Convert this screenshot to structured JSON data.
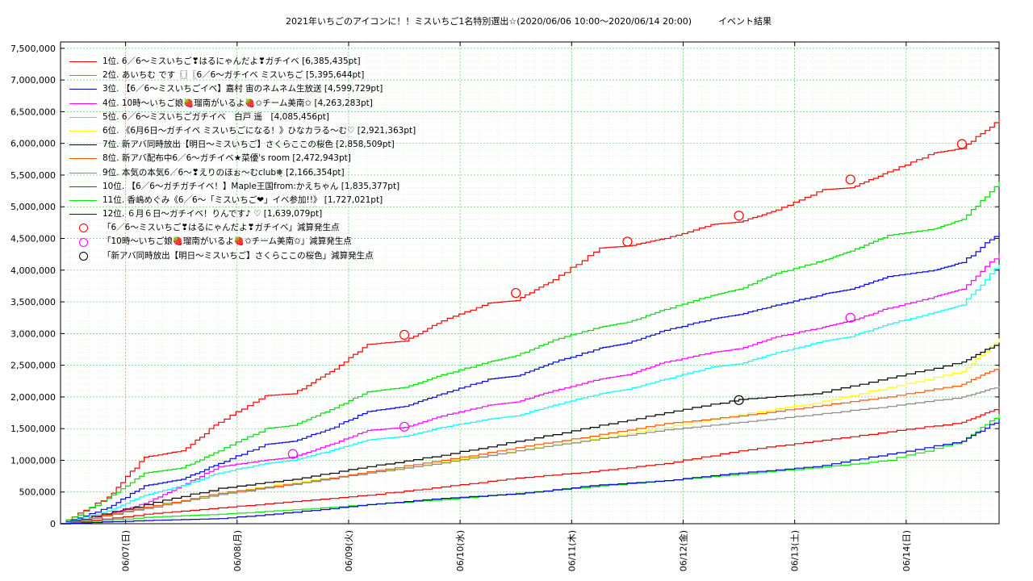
{
  "chart_data": {
    "type": "line",
    "title": "2021年いちごのアイコンに！！ミスいちご1名特別選出☆(2020/06/06 10:00〜2020/06/14 20:00)　　　イベント結果",
    "xlabel": "",
    "ylabel": "",
    "x_start": "2020/06/06 10:00",
    "x_end": "2020/06/14 20:00",
    "x_ticks": [
      "06/07(日)",
      "06/08(月)",
      "06/09(火)",
      "06/10(水)",
      "06/11(木)",
      "06/12(金)",
      "06/13(土)",
      "06/14(日)"
    ],
    "x_tick_dates": [
      "2020/06/07 00:00",
      "2020/06/08 00:00",
      "2020/06/09 00:00",
      "2020/06/10 00:00",
      "2020/06/11 00:00",
      "2020/06/12 00:00",
      "2020/06/13 00:00",
      "2020/06/14 00:00"
    ],
    "y_ticks": [
      "0",
      "500,000",
      "1,000,000",
      "1,500,000",
      "2,000,000",
      "2,500,000",
      "3,000,000",
      "3,500,000",
      "4,000,000",
      "4,500,000",
      "5,000,000",
      "5,500,000",
      "6,000,000",
      "6,500,000",
      "7,000,000",
      "7,500,000"
    ],
    "ylim": [
      0,
      7600000
    ],
    "grid": true,
    "legend_position": "top-left",
    "series": [
      {
        "name": "1位. 6／6〜ミスいちご❣はるにゃんだよ❣ガチイベ [6,385,435pt]",
        "color": "#ff0000",
        "x": [
          "2020/06/06 10:00",
          "2020/06/06 20:00",
          "2020/06/07 04:00",
          "2020/06/07 12:00",
          "2020/06/07 20:00",
          "2020/06/08 06:00",
          "2020/06/08 12:00",
          "2020/06/08 20:00",
          "2020/06/09 04:00",
          "2020/06/09 12:00",
          "2020/06/09 20:00",
          "2020/06/10 06:00",
          "2020/06/10 12:00",
          "2020/06/10 20:00",
          "2020/06/11 06:00",
          "2020/06/11 12:00",
          "2020/06/11 20:00",
          "2020/06/12 06:00",
          "2020/06/12 12:00",
          "2020/06/12 20:00",
          "2020/06/13 06:00",
          "2020/06/13 12:00",
          "2020/06/13 20:00",
          "2020/06/14 06:00",
          "2020/06/14 12:00",
          "2020/06/14 20:00"
        ],
        "y": [
          0,
          420000,
          1050000,
          1150000,
          1600000,
          2020000,
          2050000,
          2400000,
          2830000,
          2880000,
          3200000,
          3480000,
          3520000,
          3850000,
          4350000,
          4380000,
          4500000,
          4720000,
          4760000,
          4950000,
          5270000,
          5300000,
          5550000,
          5850000,
          5920000,
          6385435
        ]
      },
      {
        "name": "2位. あいちむ です〖〗〖6／6〜ガチイベ ミスいちご [5,395,644pt]",
        "color": "#00dd00",
        "x": [
          "2020/06/06 10:00",
          "2020/06/06 20:00",
          "2020/06/07 04:00",
          "2020/06/07 12:00",
          "2020/06/07 20:00",
          "2020/06/08 06:00",
          "2020/06/08 12:00",
          "2020/06/08 20:00",
          "2020/06/09 04:00",
          "2020/06/09 12:00",
          "2020/06/09 20:00",
          "2020/06/10 06:00",
          "2020/06/10 12:00",
          "2020/06/10 20:00",
          "2020/06/11 06:00",
          "2020/06/11 12:00",
          "2020/06/11 20:00",
          "2020/06/12 06:00",
          "2020/06/12 12:00",
          "2020/06/12 20:00",
          "2020/06/13 06:00",
          "2020/06/13 12:00",
          "2020/06/13 20:00",
          "2020/06/14 06:00",
          "2020/06/14 12:00",
          "2020/06/14 20:00"
        ],
        "y": [
          0,
          400000,
          800000,
          880000,
          1150000,
          1500000,
          1550000,
          1800000,
          2080000,
          2150000,
          2350000,
          2550000,
          2650000,
          2900000,
          3100000,
          3180000,
          3380000,
          3600000,
          3700000,
          3950000,
          4150000,
          4300000,
          4550000,
          4650000,
          4800000,
          5395644
        ]
      },
      {
        "name": "3位. 【6／6〜ミスいちごイベ】嘉村 宙のネムネム生放送 [4,599,729pt]",
        "color": "#0000ee",
        "x": [
          "2020/06/06 10:00",
          "2020/06/06 20:00",
          "2020/06/07 04:00",
          "2020/06/07 12:00",
          "2020/06/07 20:00",
          "2020/06/08 06:00",
          "2020/06/08 12:00",
          "2020/06/08 20:00",
          "2020/06/09 04:00",
          "2020/06/09 12:00",
          "2020/06/09 20:00",
          "2020/06/10 06:00",
          "2020/06/10 12:00",
          "2020/06/10 20:00",
          "2020/06/11 06:00",
          "2020/06/11 12:00",
          "2020/06/11 20:00",
          "2020/06/12 06:00",
          "2020/06/12 12:00",
          "2020/06/12 20:00",
          "2020/06/13 06:00",
          "2020/06/13 12:00",
          "2020/06/13 20:00",
          "2020/06/14 06:00",
          "2020/06/14 12:00",
          "2020/06/14 20:00"
        ],
        "y": [
          0,
          250000,
          600000,
          700000,
          950000,
          1250000,
          1300000,
          1500000,
          1770000,
          1850000,
          2050000,
          2280000,
          2330000,
          2550000,
          2770000,
          2850000,
          3050000,
          3230000,
          3300000,
          3450000,
          3620000,
          3700000,
          3900000,
          4000000,
          4120000,
          4599729
        ]
      },
      {
        "name": "4位. 10時〜いちご娘🍓瑠南がいるよ🍓✩チーム美南✩ [4,263,283pt]",
        "color": "#ff00ff",
        "x": [
          "2020/06/06 10:00",
          "2020/06/06 20:00",
          "2020/06/07 04:00",
          "2020/06/07 12:00",
          "2020/06/07 20:00",
          "2020/06/08 06:00",
          "2020/06/08 12:00",
          "2020/06/08 20:00",
          "2020/06/09 04:00",
          "2020/06/09 12:00",
          "2020/06/09 20:00",
          "2020/06/10 06:00",
          "2020/06/10 12:00",
          "2020/06/10 20:00",
          "2020/06/11 06:00",
          "2020/06/11 12:00",
          "2020/06/11 20:00",
          "2020/06/12 06:00",
          "2020/06/12 12:00",
          "2020/06/12 20:00",
          "2020/06/13 06:00",
          "2020/06/13 12:00",
          "2020/06/13 20:00",
          "2020/06/14 06:00",
          "2020/06/14 12:00",
          "2020/06/14 20:00"
        ],
        "y": [
          0,
          150000,
          320000,
          600000,
          900000,
          1000000,
          1050000,
          1250000,
          1470000,
          1520000,
          1700000,
          1870000,
          1920000,
          2100000,
          2280000,
          2350000,
          2550000,
          2700000,
          2760000,
          2950000,
          3100000,
          3200000,
          3400000,
          3580000,
          3700000,
          4263283
        ]
      },
      {
        "name": "5位. 6／6〜ミスいちごガチイベ　白戸 遥　[4,085,456pt]",
        "color": "#00ffff",
        "x": [
          "2020/06/06 10:00",
          "2020/06/06 20:00",
          "2020/06/07 04:00",
          "2020/06/07 12:00",
          "2020/06/07 20:00",
          "2020/06/08 06:00",
          "2020/06/08 12:00",
          "2020/06/08 20:00",
          "2020/06/09 04:00",
          "2020/06/09 12:00",
          "2020/06/09 20:00",
          "2020/06/10 06:00",
          "2020/06/10 12:00",
          "2020/06/10 20:00",
          "2020/06/11 06:00",
          "2020/06/11 12:00",
          "2020/06/11 20:00",
          "2020/06/12 06:00",
          "2020/06/12 12:00",
          "2020/06/12 20:00",
          "2020/06/13 06:00",
          "2020/06/13 12:00",
          "2020/06/13 20:00",
          "2020/06/14 06:00",
          "2020/06/14 12:00",
          "2020/06/14 20:00"
        ],
        "y": [
          0,
          200000,
          450000,
          600000,
          800000,
          950000,
          1000000,
          1150000,
          1320000,
          1380000,
          1520000,
          1650000,
          1700000,
          1870000,
          2050000,
          2120000,
          2280000,
          2470000,
          2520000,
          2700000,
          2880000,
          2950000,
          3150000,
          3330000,
          3450000,
          4085456
        ]
      },
      {
        "name": "6位. 《6月6日〜ガチイベ ミスいちごになる！》ひなカラる〜む♡ [2,921,363pt]",
        "color": "#ffff00",
        "x": [
          "2020/06/06 10:00",
          "2020/06/07 04:00",
          "2020/06/07 20:00",
          "2020/06/08 12:00",
          "2020/06/09 04:00",
          "2020/06/09 20:00",
          "2020/06/10 12:00",
          "2020/06/11 04:00",
          "2020/06/11 20:00",
          "2020/06/12 12:00",
          "2020/06/13 04:00",
          "2020/06/13 20:00",
          "2020/06/14 12:00",
          "2020/06/14 20:00"
        ],
        "y": [
          0,
          250000,
          480000,
          650000,
          800000,
          980000,
          1150000,
          1330000,
          1520000,
          1720000,
          1900000,
          2150000,
          2400000,
          2921363
        ]
      },
      {
        "name": "7位. 新アバ同時放出【明日〜ミスいちご】さくらここの桜色 [2,858,509pt]",
        "color": "#000000",
        "x": [
          "2020/06/06 10:00",
          "2020/06/07 04:00",
          "2020/06/07 20:00",
          "2020/06/08 12:00",
          "2020/06/09 04:00",
          "2020/06/09 20:00",
          "2020/06/10 12:00",
          "2020/06/11 04:00",
          "2020/06/11 20:00",
          "2020/06/12 12:00",
          "2020/06/13 04:00",
          "2020/06/13 20:00",
          "2020/06/14 12:00",
          "2020/06/14 20:00"
        ],
        "y": [
          0,
          300000,
          560000,
          700000,
          900000,
          1080000,
          1300000,
          1520000,
          1750000,
          1960000,
          2050000,
          2300000,
          2550000,
          2858509
        ]
      },
      {
        "name": "8位. 新アバ配布中6／6〜ガチイベ★菜優's room [2,472,943pt]",
        "color": "#ff5500",
        "x": [
          "2020/06/06 10:00",
          "2020/06/07 04:00",
          "2020/06/07 20:00",
          "2020/06/08 12:00",
          "2020/06/09 04:00",
          "2020/06/09 20:00",
          "2020/06/10 12:00",
          "2020/06/11 04:00",
          "2020/06/11 20:00",
          "2020/06/12 12:00",
          "2020/06/13 04:00",
          "2020/06/13 20:00",
          "2020/06/14 12:00",
          "2020/06/14 20:00"
        ],
        "y": [
          0,
          260000,
          480000,
          630000,
          820000,
          1000000,
          1200000,
          1380000,
          1580000,
          1700000,
          1850000,
          2000000,
          2200000,
          2472943
        ]
      },
      {
        "name": "9位. 本気の本気6／6〜❣えりのほぉ〜むclub❅̣ [2,166,354pt]",
        "color": "#888888",
        "x": [
          "2020/06/06 10:00",
          "2020/06/07 04:00",
          "2020/06/07 20:00",
          "2020/06/08 12:00",
          "2020/06/09 04:00",
          "2020/06/09 20:00",
          "2020/06/10 12:00",
          "2020/06/11 04:00",
          "2020/06/11 20:00",
          "2020/06/12 12:00",
          "2020/06/13 04:00",
          "2020/06/13 20:00",
          "2020/06/14 12:00",
          "2020/06/14 20:00"
        ],
        "y": [
          0,
          240000,
          460000,
          620000,
          800000,
          960000,
          1150000,
          1320000,
          1480000,
          1600000,
          1720000,
          1850000,
          2000000,
          2166354
        ]
      },
      {
        "name": "10位. 【6／6〜ガチガチイベ！】Maple王国from:かえちゃん [1,835,377pt]",
        "color": "#ee0000",
        "x": [
          "2020/06/06 10:00",
          "2020/06/07 04:00",
          "2020/06/07 20:00",
          "2020/06/08 12:00",
          "2020/06/09 04:00",
          "2020/06/09 20:00",
          "2020/06/10 12:00",
          "2020/06/11 04:00",
          "2020/06/11 20:00",
          "2020/06/12 12:00",
          "2020/06/13 04:00",
          "2020/06/13 20:00",
          "2020/06/14 12:00",
          "2020/06/14 20:00"
        ],
        "y": [
          0,
          150000,
          250000,
          350000,
          450000,
          580000,
          720000,
          820000,
          950000,
          1150000,
          1300000,
          1450000,
          1600000,
          1835377
        ]
      },
      {
        "name": "11位. 香嶋めぐみ《6／6〜「ミスいちご❤」イベ参加!!》 [1,727,021pt]",
        "color": "#00ee00",
        "x": [
          "2020/06/06 10:00",
          "2020/06/07 04:00",
          "2020/06/07 20:00",
          "2020/06/08 12:00",
          "2020/06/09 04:00",
          "2020/06/09 20:00",
          "2020/06/10 12:00",
          "2020/06/11 04:00",
          "2020/06/11 20:00",
          "2020/06/12 12:00",
          "2020/06/13 04:00",
          "2020/06/13 20:00",
          "2020/06/14 12:00",
          "2020/06/14 20:00"
        ],
        "y": [
          0,
          100000,
          150000,
          220000,
          300000,
          380000,
          480000,
          580000,
          680000,
          780000,
          880000,
          1000000,
          1300000,
          1727021
        ]
      },
      {
        "name": "12位. ６月６日〜ガチイベ！りんです♪ ♡ [1,639,079pt]",
        "color": "#0000cc",
        "x": [
          "2020/06/06 10:00",
          "2020/06/07 04:00",
          "2020/06/07 20:00",
          "2020/06/08 12:00",
          "2020/06/09 04:00",
          "2020/06/09 20:00",
          "2020/06/10 12:00",
          "2020/06/11 04:00",
          "2020/06/11 20:00",
          "2020/06/12 12:00",
          "2020/06/13 04:00",
          "2020/06/13 20:00",
          "2020/06/14 12:00",
          "2020/06/14 20:00"
        ],
        "y": [
          0,
          50000,
          80000,
          180000,
          300000,
          400000,
          470000,
          600000,
          680000,
          800000,
          900000,
          1100000,
          1300000,
          1639079
        ]
      }
    ],
    "markers": [
      {
        "name": "「6／6〜ミスいちご❣はるにゃんだよ❣ガチイベ」減算発生点",
        "color": "#ff0000",
        "points": [
          {
            "x": "2020/06/09 12:00",
            "y": 2980000
          },
          {
            "x": "2020/06/10 12:00",
            "y": 3640000
          },
          {
            "x": "2020/06/11 12:00",
            "y": 4450000
          },
          {
            "x": "2020/06/12 12:00",
            "y": 4860000
          },
          {
            "x": "2020/06/13 12:00",
            "y": 5430000
          },
          {
            "x": "2020/06/14 12:00",
            "y": 5990000
          }
        ]
      },
      {
        "name": "「10時〜いちご娘🍓瑠南がいるよ🍓✩チーム美南✩」減算発生点",
        "color": "#ff00ff",
        "points": [
          {
            "x": "2020/06/08 12:00",
            "y": 1100000
          },
          {
            "x": "2020/06/09 12:00",
            "y": 1530000
          },
          {
            "x": "2020/06/13 12:00",
            "y": 3250000
          }
        ]
      },
      {
        "name": "「新アバ同時放出【明日〜ミスいちご】さくらここの桜色」減算発生点",
        "color": "#000000",
        "points": [
          {
            "x": "2020/06/12 12:00",
            "y": 1950000
          }
        ]
      }
    ]
  }
}
